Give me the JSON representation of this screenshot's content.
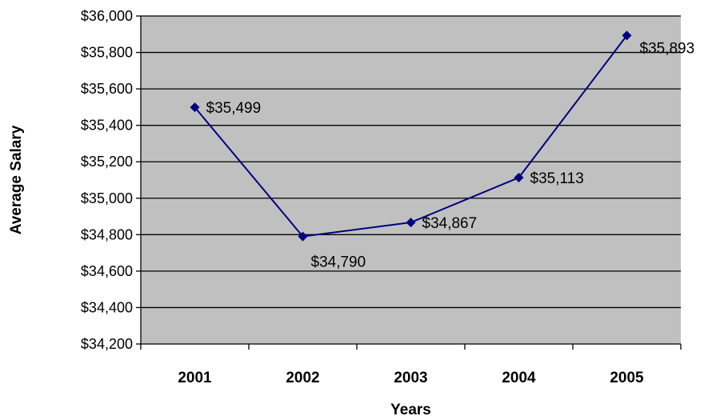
{
  "chart_data": {
    "type": "line",
    "categories": [
      "2001",
      "2002",
      "2003",
      "2004",
      "2005"
    ],
    "series": [
      {
        "values": [
          35499,
          34790,
          34867,
          35113,
          35893
        ],
        "data_labels": [
          "$35,499",
          "$34,790",
          "$34,867",
          "$35,113",
          "$35,893"
        ]
      }
    ],
    "xlabel": "Years",
    "ylabel": "Average Salary",
    "ylim": [
      34200,
      36000
    ],
    "y_ticks": [
      34200,
      34400,
      34600,
      34800,
      35000,
      35200,
      35400,
      35600,
      35800,
      36000
    ],
    "y_tick_labels": [
      "$34,200",
      "$34,400",
      "$34,600",
      "$34,800",
      "$35,000",
      "$35,200",
      "$35,400",
      "$35,600",
      "$35,800",
      "$36,000"
    ],
    "grid": true,
    "legend": "none",
    "colors": {
      "plot_background": "#c0c0c0",
      "line": "#000080",
      "marker": "#000080",
      "gridline": "#000000"
    }
  }
}
